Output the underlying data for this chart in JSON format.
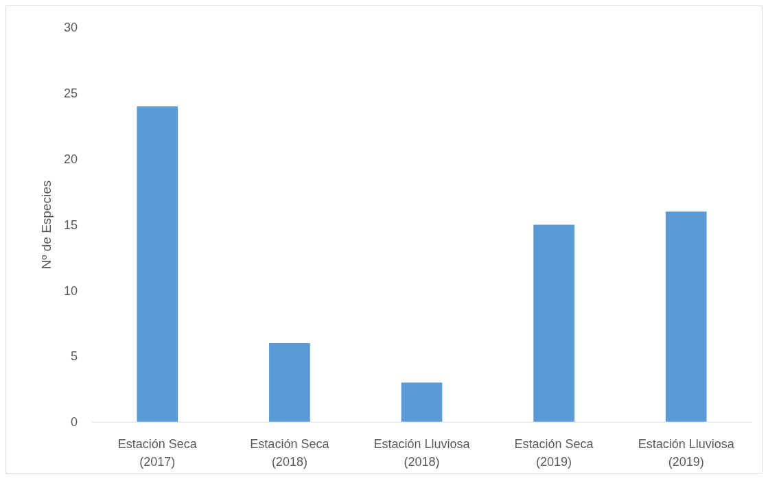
{
  "chart_data": {
    "type": "bar",
    "ylabel": "Nº de Especies",
    "categories": [
      "Estación Seca (2017)",
      "Estación Seca (2018)",
      "Estación Lluviosa (2018)",
      "Estación Seca (2019)",
      "Estación Lluviosa (2019)"
    ],
    "values": [
      24,
      6,
      3,
      15,
      16
    ],
    "color": "#5b9bd5",
    "ylim": [
      0,
      30
    ],
    "yticks": [
      0,
      5,
      10,
      15,
      20,
      25,
      30
    ],
    "grid": false
  }
}
